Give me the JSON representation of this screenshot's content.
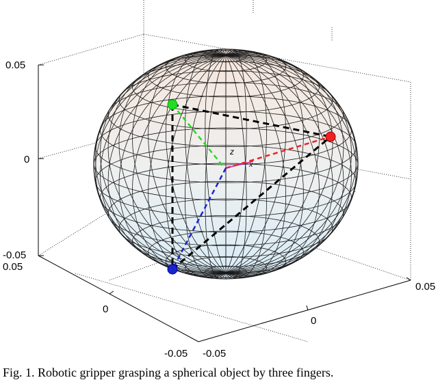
{
  "figure": {
    "caption": "Fig. 1.  Robotic gripper grasping a spherical object by three fingers.",
    "axes": {
      "z_ticks": [
        "0.05",
        "0",
        "-0.05"
      ],
      "y_ticks": [
        "0.05",
        "0",
        "-0.05"
      ],
      "x_ticks": [
        "-0.05",
        "0",
        "0.05"
      ]
    },
    "point_labels": [
      "z",
      "x"
    ],
    "colors": {
      "sphere_top": "#f6e6dc",
      "sphere_bottom": "#d8ecf7",
      "mesh": "#1a1a1a",
      "contact_green": "#22dd22",
      "contact_red": "#ee2222",
      "contact_blue": "#1a24cc",
      "frame_magenta": "#cc2299",
      "dashed_black": "#000000"
    },
    "legend_hidden": true
  }
}
